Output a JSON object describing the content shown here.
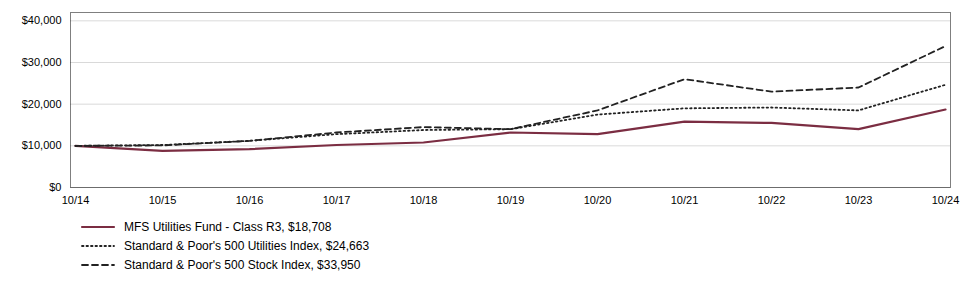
{
  "chart_data": {
    "type": "line",
    "categories": [
      "10/14",
      "10/15",
      "10/16",
      "10/17",
      "10/18",
      "10/19",
      "10/20",
      "10/21",
      "10/22",
      "10/23",
      "10/24"
    ],
    "series": [
      {
        "name": "MFS Utilities Fund - Class R3, $18,708",
        "color": "#7B2D42",
        "line_style": "solid",
        "values": [
          10000,
          8800,
          9200,
          10200,
          10800,
          13200,
          12800,
          15800,
          15500,
          14000,
          18708
        ]
      },
      {
        "name": "Standard & Poor's 500 Utilities Index, $24,663",
        "color": "#222222",
        "line_style": "dotted",
        "values": [
          10000,
          10200,
          11200,
          12800,
          13800,
          14000,
          17500,
          19000,
          19200,
          18500,
          24663
        ]
      },
      {
        "name": "Standard & Poor's 500 Stock Index, $33,950",
        "color": "#222222",
        "line_style": "dashed",
        "values": [
          10000,
          10100,
          11200,
          13200,
          14500,
          14000,
          18500,
          26000,
          23000,
          24000,
          33950
        ]
      }
    ],
    "ylim": [
      0,
      42000
    ],
    "yticks": [
      {
        "value": 0,
        "label": "$0"
      },
      {
        "value": 10000,
        "label": "$10,000"
      },
      {
        "value": 20000,
        "label": "$20,000"
      },
      {
        "value": 30000,
        "label": "$30,000"
      },
      {
        "value": 40000,
        "label": "$40,000"
      }
    ],
    "grid": true,
    "legend": "bottom"
  }
}
